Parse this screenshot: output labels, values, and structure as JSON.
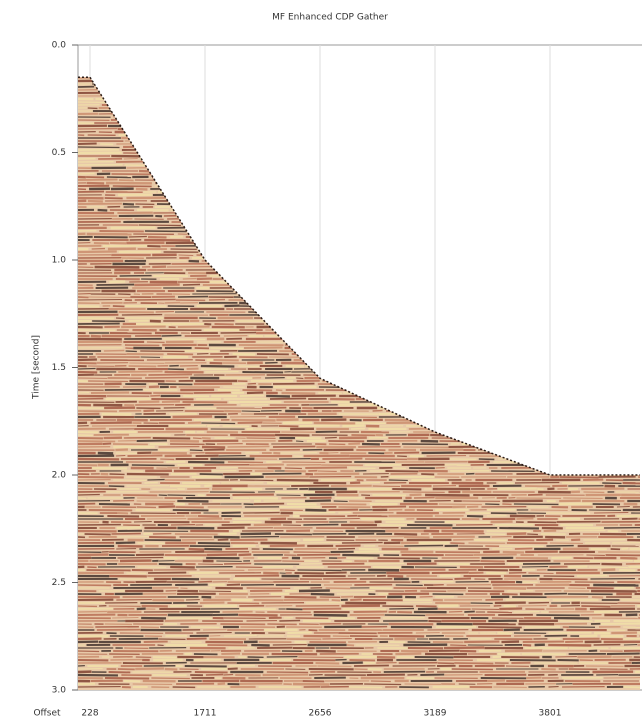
{
  "chart_data": {
    "type": "seismic",
    "title": "MF Enhanced CDP Gather",
    "y_label": "Time [second]",
    "x_label": "Offset",
    "categories": [
      "228",
      "1711",
      "2656",
      "3189",
      "3801"
    ],
    "values": [
      0.15,
      1.0,
      1.55,
      1.8,
      2.0
    ],
    "color": "#a0523d",
    "ylim": [
      0,
      3
    ],
    "yticks": [
      {
        "value": 0,
        "label": "0.0"
      },
      {
        "value": 0.5,
        "label": "0.5"
      },
      {
        "value": 1,
        "label": "1.0"
      },
      {
        "value": 1.5,
        "label": "1.5"
      },
      {
        "value": 2,
        "label": "2.0"
      },
      {
        "value": 2.5,
        "label": "2.5"
      },
      {
        "value": 3,
        "label": "3.0"
      }
    ],
    "grid": true
  }
}
